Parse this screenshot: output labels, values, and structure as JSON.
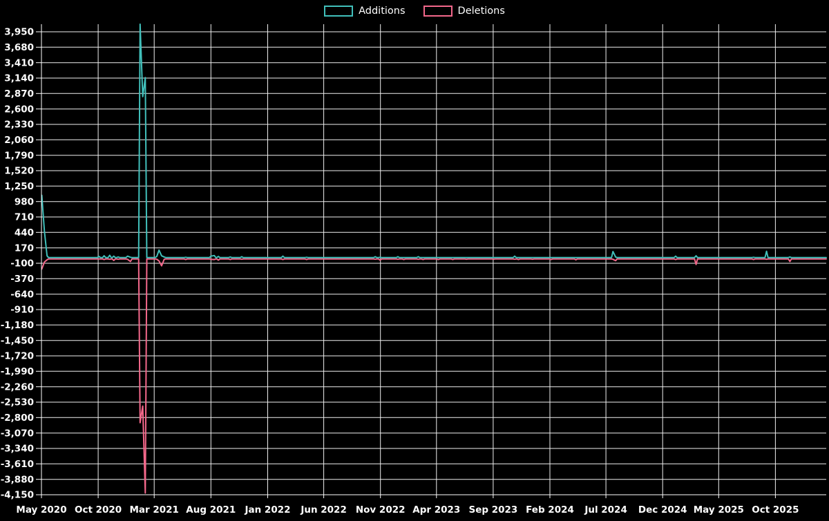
{
  "page": {
    "background": "#000000"
  },
  "legend": {
    "items": [
      {
        "label": "Additions",
        "color": "#41c0bb"
      },
      {
        "label": "Deletions",
        "color": "#f4688b"
      }
    ]
  },
  "chart_data": {
    "type": "line",
    "grid": "on",
    "legend_position": "top-center",
    "x_axis": {
      "start": "2020-05-01",
      "end": "2026-02-15",
      "ticks": [
        {
          "date": "2020-05-01",
          "label": "May 2020"
        },
        {
          "date": "2020-10-01",
          "label": "Oct 2020"
        },
        {
          "date": "2021-03-01",
          "label": "Mar 2021"
        },
        {
          "date": "2021-08-01",
          "label": "Aug 2021"
        },
        {
          "date": "2022-01-01",
          "label": "Jan 2022"
        },
        {
          "date": "2022-06-01",
          "label": "Jun 2022"
        },
        {
          "date": "2022-11-01",
          "label": "Nov 2022"
        },
        {
          "date": "2023-04-01",
          "label": "Apr 2023"
        },
        {
          "date": "2023-09-01",
          "label": "Sep 2023"
        },
        {
          "date": "2024-02-01",
          "label": "Feb 2024"
        },
        {
          "date": "2024-07-01",
          "label": "Jul 2024"
        },
        {
          "date": "2024-12-01",
          "label": "Dec 2024"
        },
        {
          "date": "2025-05-01",
          "label": "May 2025"
        },
        {
          "date": "2025-10-01",
          "label": "Oct 2025"
        }
      ]
    },
    "y_axis": {
      "min": -4150,
      "max": 4083,
      "ticks": [
        {
          "value": 3950,
          "label": "3,950"
        },
        {
          "value": 3680,
          "label": "3,680"
        },
        {
          "value": 3410,
          "label": "3,410"
        },
        {
          "value": 3140,
          "label": "3,140"
        },
        {
          "value": 2870,
          "label": "2,870"
        },
        {
          "value": 2600,
          "label": "2,600"
        },
        {
          "value": 2330,
          "label": "2,330"
        },
        {
          "value": 2060,
          "label": "2,060"
        },
        {
          "value": 1790,
          "label": "1,790"
        },
        {
          "value": 1520,
          "label": "1,520"
        },
        {
          "value": 1250,
          "label": "1,250"
        },
        {
          "value": 980,
          "label": "980"
        },
        {
          "value": 710,
          "label": "710"
        },
        {
          "value": 440,
          "label": "440"
        },
        {
          "value": 170,
          "label": "170"
        },
        {
          "value": -100,
          "label": "-100"
        },
        {
          "value": -370,
          "label": "-370"
        },
        {
          "value": -640,
          "label": "-640"
        },
        {
          "value": -910,
          "label": "-910"
        },
        {
          "value": -1180,
          "label": "-1,180"
        },
        {
          "value": -1450,
          "label": "-1,450"
        },
        {
          "value": -1720,
          "label": "-1,720"
        },
        {
          "value": -1990,
          "label": "-1,990"
        },
        {
          "value": -2260,
          "label": "-2,260"
        },
        {
          "value": -2530,
          "label": "-2,530"
        },
        {
          "value": -2800,
          "label": "-2,800"
        },
        {
          "value": -3070,
          "label": "-3,070"
        },
        {
          "value": -3340,
          "label": "-3,340"
        },
        {
          "value": -3610,
          "label": "-3,610"
        },
        {
          "value": -3880,
          "label": "-3,880"
        },
        {
          "value": -4150,
          "label": "-4,150"
        }
      ]
    },
    "series": [
      {
        "name": "Additions",
        "color": "#41c0bb",
        "baseline": 0,
        "points": [
          [
            "2020-05-02",
            1090
          ],
          [
            "2020-05-09",
            460
          ],
          [
            "2020-05-16",
            30
          ],
          [
            "2020-10-03",
            20
          ],
          [
            "2020-10-17",
            30
          ],
          [
            "2020-11-01",
            40
          ],
          [
            "2020-11-12",
            25
          ],
          [
            "2020-11-24",
            10
          ],
          [
            "2020-12-19",
            25
          ],
          [
            "2020-12-27",
            5
          ],
          [
            "2021-01-22",
            4083
          ],
          [
            "2021-01-29",
            2815
          ],
          [
            "2021-02-05",
            3150
          ],
          [
            "2021-03-08",
            20
          ],
          [
            "2021-03-14",
            130
          ],
          [
            "2021-03-21",
            30
          ],
          [
            "2021-03-28",
            10
          ],
          [
            "2021-05-25",
            5
          ],
          [
            "2021-08-01",
            25
          ],
          [
            "2021-08-10",
            35
          ],
          [
            "2021-08-21",
            20
          ],
          [
            "2021-09-22",
            10
          ],
          [
            "2021-10-23",
            15
          ],
          [
            "2022-02-11",
            25
          ],
          [
            "2022-04-16",
            5
          ],
          [
            "2022-10-18",
            15
          ],
          [
            "2022-10-31",
            5
          ],
          [
            "2022-12-18",
            15
          ],
          [
            "2023-02-11",
            15
          ],
          [
            "2023-10-29",
            25
          ],
          [
            "2024-07-20",
            105
          ],
          [
            "2024-07-27",
            10
          ],
          [
            "2025-01-05",
            25
          ],
          [
            "2025-03-01",
            30
          ],
          [
            "2025-08-03",
            5
          ],
          [
            "2025-09-07",
            110
          ],
          [
            "2025-11-09",
            10
          ]
        ]
      },
      {
        "name": "Deletions",
        "color": "#f4688b",
        "baseline": -25,
        "points": [
          [
            "2020-05-02",
            -200
          ],
          [
            "2020-05-09",
            -80
          ],
          [
            "2020-05-16",
            -40
          ],
          [
            "2020-10-03",
            -25
          ],
          [
            "2020-10-17",
            -35
          ],
          [
            "2020-11-01",
            -30
          ],
          [
            "2020-11-12",
            -50
          ],
          [
            "2020-11-24",
            -30
          ],
          [
            "2020-12-19",
            -30
          ],
          [
            "2020-12-27",
            -70
          ],
          [
            "2021-01-22",
            -2890
          ],
          [
            "2021-01-29",
            -2600
          ],
          [
            "2021-02-05",
            -4120
          ],
          [
            "2021-03-08",
            -30
          ],
          [
            "2021-03-14",
            -60
          ],
          [
            "2021-03-21",
            -145
          ],
          [
            "2021-03-28",
            -30
          ],
          [
            "2021-05-25",
            -35
          ],
          [
            "2021-08-01",
            -30
          ],
          [
            "2021-08-10",
            -35
          ],
          [
            "2021-08-21",
            -45
          ],
          [
            "2021-09-22",
            -35
          ],
          [
            "2021-10-23",
            -30
          ],
          [
            "2022-02-11",
            -35
          ],
          [
            "2022-04-16",
            -35
          ],
          [
            "2022-10-18",
            -30
          ],
          [
            "2022-10-31",
            -45
          ],
          [
            "2022-12-18",
            -30
          ],
          [
            "2023-01-03",
            -35
          ],
          [
            "2023-02-11",
            -30
          ],
          [
            "2023-02-24",
            -35
          ],
          [
            "2023-04-06",
            -35
          ],
          [
            "2023-05-15",
            -35
          ],
          [
            "2023-06-21",
            -30
          ],
          [
            "2023-09-02",
            -30
          ],
          [
            "2023-10-29",
            -30
          ],
          [
            "2023-11-08",
            -35
          ],
          [
            "2023-12-16",
            -30
          ],
          [
            "2024-02-04",
            -35
          ],
          [
            "2024-04-11",
            -40
          ],
          [
            "2024-07-20",
            -30
          ],
          [
            "2024-07-27",
            -55
          ],
          [
            "2025-01-05",
            -35
          ],
          [
            "2025-03-01",
            -120
          ],
          [
            "2025-08-03",
            -35
          ],
          [
            "2025-09-07",
            -30
          ],
          [
            "2025-11-09",
            -70
          ]
        ]
      }
    ]
  }
}
